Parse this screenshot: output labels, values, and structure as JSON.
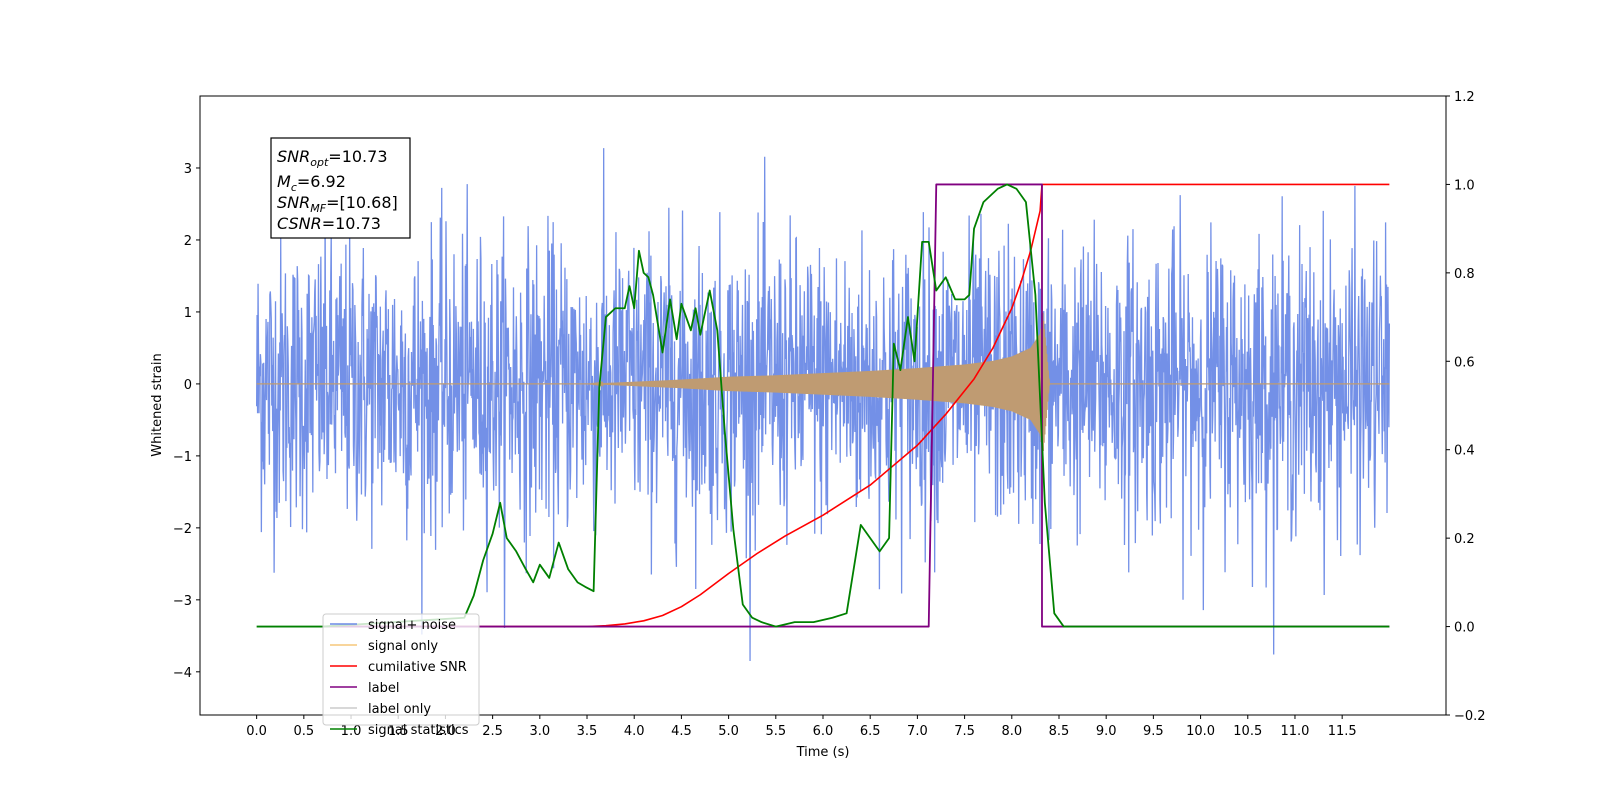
{
  "chart_data": {
    "type": "line",
    "xlabel": "Time (s)",
    "ylabel": "Whitened strain",
    "xlim": [
      -0.6,
      12.6
    ],
    "ylim": [
      -4.6,
      4.0
    ],
    "y2lim": [
      -0.2,
      1.2
    ],
    "x_ticks": [
      "0.0",
      "0.5",
      "1.0",
      "1.5",
      "2.0",
      "2.5",
      "3.0",
      "3.5",
      "4.0",
      "4.5",
      "5.0",
      "5.5",
      "6.0",
      "6.5",
      "7.0",
      "7.5",
      "8.0",
      "8.5",
      "9.0",
      "9.5",
      "10.0",
      "10.5",
      "11.0",
      "11.5"
    ],
    "y_ticks": [
      "3",
      "2",
      "1",
      "0",
      "−1",
      "−2",
      "−3",
      "−4"
    ],
    "y2_ticks": [
      "1.2",
      "1.0",
      "0.8",
      "0.6",
      "0.4",
      "0.2",
      "0.0",
      "−0.2"
    ],
    "info_box": {
      "snr_opt": "10.73",
      "mc": "6.92",
      "snr_mf": "[10.68]",
      "csnr": "10.73"
    },
    "legend": {
      "placement": "lower-left",
      "items": [
        {
          "label": "signal+ noise",
          "color": "#6b8ae6"
        },
        {
          "label": "signal only",
          "color": "#f5c77a"
        },
        {
          "label": "cumilative SNR",
          "color": "#ff0000"
        },
        {
          "label": "label",
          "color": "#800080"
        },
        {
          "label": "label only",
          "color": "#cccccc"
        },
        {
          "label": "signal statistics",
          "color": "#008000"
        }
      ]
    },
    "series": [
      {
        "name": "signal+ noise",
        "axis": "left",
        "color": "#6b8ae6",
        "x_range": [
          0.0,
          12.0
        ],
        "noise_sigma": 1.0,
        "peak_min": -3.85,
        "peak_max": 3.6
      },
      {
        "name": "signal only",
        "axis": "left",
        "color": "#bf9b72",
        "x": [
          0.0,
          3.5,
          4.0,
          4.5,
          5.0,
          5.5,
          6.0,
          6.5,
          7.0,
          7.5,
          7.8,
          8.0,
          8.2,
          8.3,
          8.33,
          8.4,
          12.0
        ],
        "amplitude": [
          0.0,
          0.0,
          0.03,
          0.06,
          0.1,
          0.12,
          0.15,
          0.18,
          0.22,
          0.27,
          0.32,
          0.38,
          0.5,
          0.7,
          1.0,
          0.0,
          0.0
        ]
      },
      {
        "name": "cumilative SNR",
        "axis": "right",
        "color": "#ff0000",
        "x": [
          0.7,
          3.5,
          3.7,
          3.9,
          4.1,
          4.3,
          4.5,
          4.7,
          5.0,
          5.3,
          5.6,
          6.0,
          6.5,
          7.0,
          7.3,
          7.6,
          7.8,
          8.0,
          8.1,
          8.2,
          8.3,
          8.32,
          8.4,
          12.0
        ],
        "y": [
          0.0,
          0.0,
          0.002,
          0.006,
          0.013,
          0.025,
          0.045,
          0.072,
          0.12,
          0.165,
          0.205,
          0.252,
          0.32,
          0.41,
          0.48,
          0.56,
          0.63,
          0.72,
          0.78,
          0.85,
          0.94,
          1.0,
          1.0,
          1.0
        ]
      },
      {
        "name": "label",
        "axis": "right",
        "color": "#800080",
        "x": [
          0.7,
          7.12,
          7.2,
          8.32,
          8.32,
          8.35,
          12.0
        ],
        "y": [
          0.0,
          0.0,
          1.0,
          1.0,
          0.0,
          0.0,
          0.0
        ]
      },
      {
        "name": "signal statistics",
        "axis": "right",
        "color": "#008000",
        "x": [
          0.0,
          0.7,
          2.2,
          2.3,
          2.4,
          2.5,
          2.58,
          2.65,
          2.75,
          2.85,
          2.93,
          3.0,
          3.1,
          3.2,
          3.3,
          3.4,
          3.48,
          3.57,
          3.63,
          3.7,
          3.8,
          3.9,
          3.95,
          4.0,
          4.05,
          4.1,
          4.15,
          4.2,
          4.3,
          4.38,
          4.45,
          4.5,
          4.6,
          4.65,
          4.7,
          4.8,
          4.88,
          4.96,
          5.05,
          5.15,
          5.25,
          5.35,
          5.5,
          5.7,
          5.9,
          6.1,
          6.25,
          6.4,
          6.5,
          6.6,
          6.7,
          6.75,
          6.82,
          6.9,
          6.97,
          7.05,
          7.12,
          7.2,
          7.3,
          7.4,
          7.5,
          7.55,
          7.6,
          7.7,
          7.85,
          7.95,
          8.05,
          8.15,
          8.25,
          8.35,
          8.45,
          8.55,
          9.0,
          12.0
        ],
        "y": [
          0.0,
          0.0,
          0.02,
          0.07,
          0.15,
          0.21,
          0.28,
          0.2,
          0.17,
          0.13,
          0.1,
          0.14,
          0.11,
          0.19,
          0.13,
          0.1,
          0.09,
          0.08,
          0.54,
          0.7,
          0.72,
          0.72,
          0.77,
          0.72,
          0.85,
          0.8,
          0.79,
          0.75,
          0.62,
          0.74,
          0.65,
          0.73,
          0.67,
          0.72,
          0.66,
          0.76,
          0.67,
          0.44,
          0.22,
          0.05,
          0.02,
          0.01,
          0.0,
          0.01,
          0.01,
          0.02,
          0.03,
          0.23,
          0.2,
          0.17,
          0.2,
          0.64,
          0.58,
          0.7,
          0.6,
          0.87,
          0.87,
          0.76,
          0.79,
          0.74,
          0.74,
          0.75,
          0.9,
          0.96,
          0.99,
          1.0,
          0.99,
          0.96,
          0.75,
          0.28,
          0.03,
          0.0,
          0.0,
          0.0
        ]
      }
    ]
  }
}
